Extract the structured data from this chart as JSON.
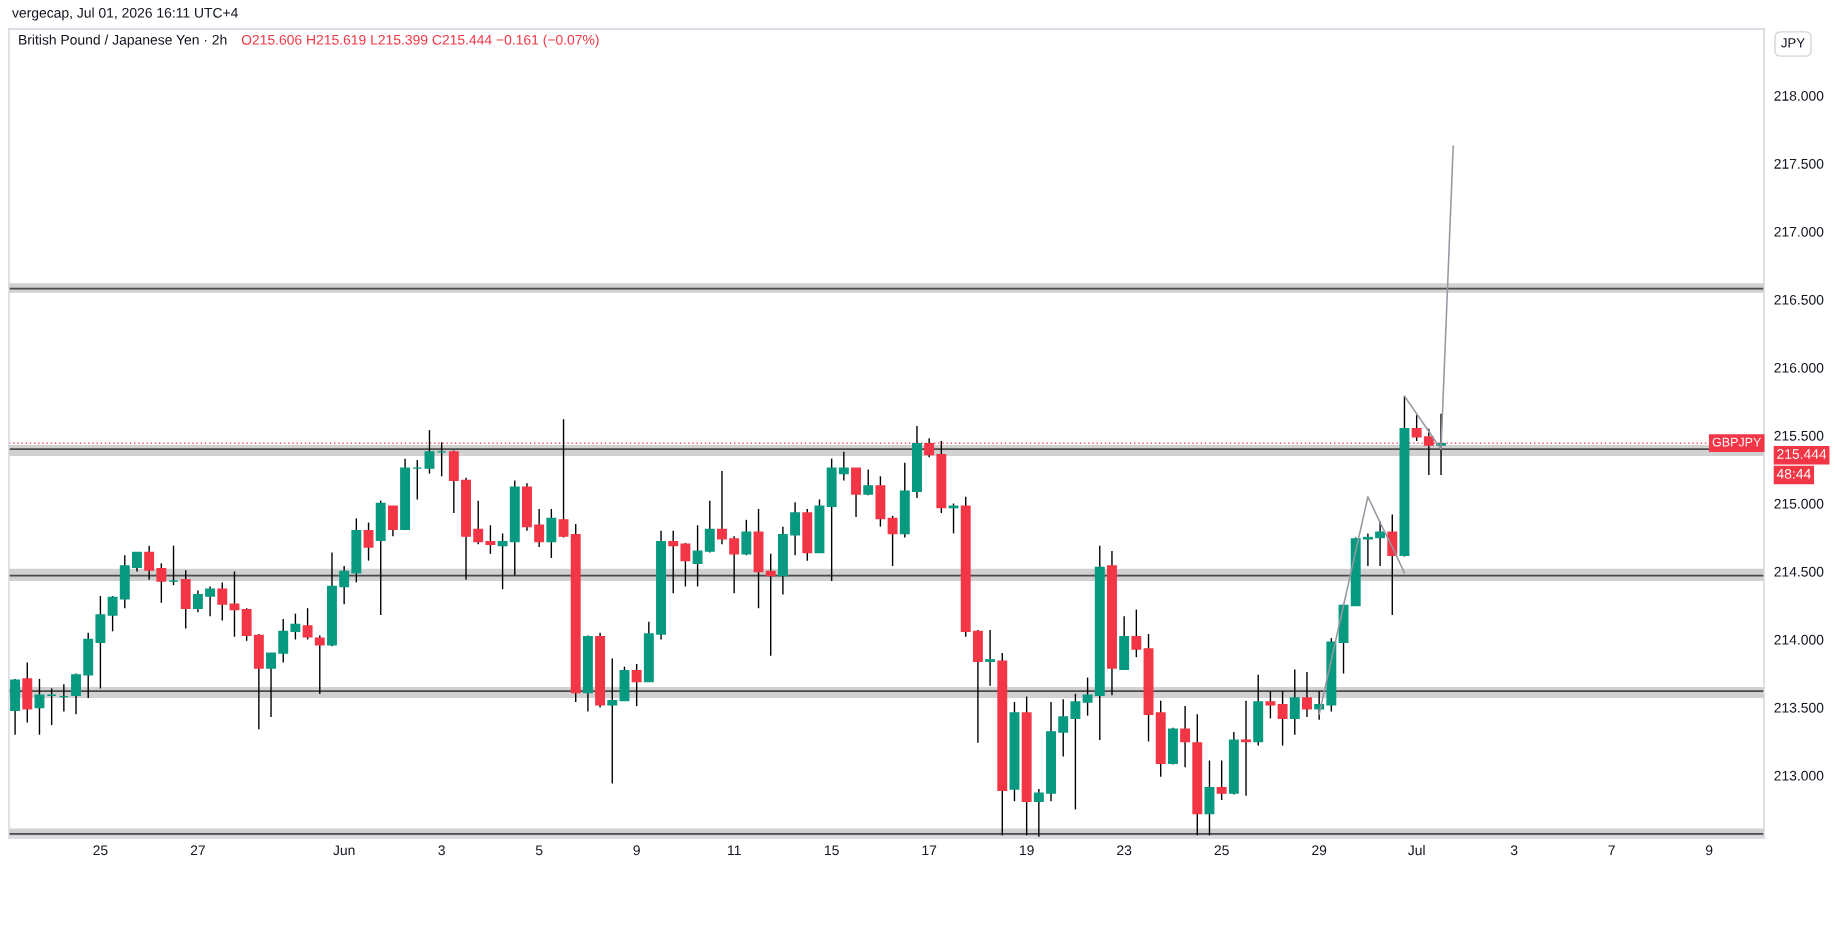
{
  "chart_data": {
    "type": "candlestick",
    "title": "British Pound / Japanese Yen · 2h",
    "subtitle": "O215.606 H215.619 L215.399 C215.444 −0.161 (−0.07%)",
    "annotations": [
      "vergecap, Jul 01, 2026 16:11 UTC+4",
      "JPY",
      "215.444",
      "48:44"
    ],
    "categories": [
      null,
      null,
      null,
      null,
      null,
      null,
      null,
      "25",
      null,
      null,
      null,
      null,
      null,
      null,
      null,
      "27",
      null,
      null,
      null,
      null,
      null,
      null,
      null,
      null,
      null,
      null,
      null,
      "Jun",
      null,
      null,
      null,
      null,
      null,
      null,
      null,
      "3",
      null,
      null,
      null,
      null,
      null,
      null,
      null,
      "5",
      null,
      null,
      null,
      null,
      null,
      null,
      null,
      "9",
      null,
      null,
      null,
      null,
      null,
      null,
      null,
      "11",
      null,
      null,
      null,
      null,
      null,
      null,
      null,
      "15",
      null,
      null,
      null,
      null,
      null,
      null,
      null,
      "17",
      null,
      null,
      null,
      null,
      null,
      null,
      null,
      "19",
      null,
      null,
      null,
      null,
      null,
      null,
      null,
      "23",
      null,
      null,
      null,
      null,
      null,
      null,
      null,
      "25",
      null,
      null,
      null,
      null,
      null,
      null,
      null,
      "29",
      null,
      null,
      null,
      null,
      null,
      null,
      null,
      "Jul",
      null,
      null,
      null,
      null,
      null,
      null,
      null,
      "3",
      null,
      null,
      null,
      null,
      null,
      null,
      null,
      "7",
      null,
      null,
      null,
      null,
      null,
      null,
      null,
      "9",
      null,
      null,
      null,
      null
    ],
    "ohlc": [
      [
        213.48,
        213.71,
        213.3,
        213.7
      ],
      [
        213.71,
        213.83,
        213.39,
        213.49
      ],
      [
        213.5,
        213.71,
        213.3,
        213.59
      ],
      [
        213.59,
        213.64,
        213.37,
        213.59
      ],
      [
        213.58,
        213.67,
        213.47,
        213.58
      ],
      [
        213.59,
        213.75,
        213.45,
        213.74
      ],
      [
        213.74,
        214.05,
        213.57,
        214.0
      ],
      [
        213.98,
        214.32,
        213.64,
        214.18
      ],
      [
        214.18,
        214.32,
        214.06,
        214.31
      ],
      [
        214.3,
        214.62,
        214.23,
        214.54
      ],
      [
        214.53,
        214.64,
        214.5,
        214.64
      ],
      [
        214.64,
        214.69,
        214.44,
        214.51
      ],
      [
        214.52,
        214.56,
        214.27,
        214.43
      ],
      [
        214.43,
        214.69,
        214.4,
        214.43
      ],
      [
        214.44,
        214.51,
        214.08,
        214.23
      ],
      [
        214.23,
        214.36,
        214.2,
        214.33
      ],
      [
        214.32,
        214.39,
        214.17,
        214.37
      ],
      [
        214.37,
        214.42,
        214.14,
        214.26
      ],
      [
        214.26,
        214.5,
        214.02,
        214.22
      ],
      [
        214.22,
        214.23,
        213.99,
        214.03
      ],
      [
        214.03,
        214.04,
        213.34,
        213.79
      ],
      [
        213.79,
        213.9,
        213.43,
        213.9
      ],
      [
        213.9,
        214.15,
        213.83,
        214.06
      ],
      [
        214.06,
        214.19,
        214.0,
        214.11
      ],
      [
        214.1,
        214.23,
        214.0,
        214.02
      ],
      [
        214.01,
        214.03,
        213.6,
        213.96
      ],
      [
        213.96,
        214.64,
        213.95,
        214.39
      ],
      [
        214.39,
        214.54,
        214.26,
        214.5
      ],
      [
        214.49,
        214.89,
        214.42,
        214.8
      ],
      [
        214.8,
        214.86,
        214.58,
        214.68
      ],
      [
        214.73,
        215.02,
        214.18,
        215.0
      ],
      [
        214.98,
        214.98,
        214.76,
        214.81
      ],
      [
        214.81,
        215.33,
        214.81,
        215.26
      ],
      [
        215.26,
        215.32,
        215.03,
        215.26
      ],
      [
        215.26,
        215.54,
        215.22,
        215.38
      ],
      [
        215.38,
        215.45,
        215.2,
        215.38
      ],
      [
        215.38,
        215.39,
        214.93,
        215.17
      ],
      [
        215.17,
        215.19,
        214.44,
        214.76
      ],
      [
        214.81,
        215.02,
        214.7,
        214.72
      ],
      [
        214.72,
        214.84,
        214.63,
        214.7
      ],
      [
        214.69,
        214.78,
        214.37,
        214.72
      ],
      [
        214.72,
        215.17,
        214.47,
        215.12
      ],
      [
        215.12,
        215.15,
        214.8,
        214.83
      ],
      [
        214.84,
        214.96,
        214.68,
        214.72
      ],
      [
        214.72,
        214.96,
        214.6,
        214.89
      ],
      [
        214.88,
        215.62,
        214.75,
        214.76
      ],
      [
        214.77,
        214.85,
        213.54,
        213.61
      ],
      [
        213.61,
        214.03,
        213.47,
        214.02
      ],
      [
        214.02,
        214.05,
        213.5,
        213.52
      ],
      [
        213.52,
        213.86,
        212.94,
        213.55
      ],
      [
        213.55,
        213.8,
        213.55,
        213.77
      ],
      [
        213.77,
        213.82,
        213.51,
        213.69
      ],
      [
        213.69,
        214.13,
        213.69,
        214.04
      ],
      [
        214.04,
        214.8,
        214.0,
        214.72
      ],
      [
        214.72,
        214.8,
        214.34,
        214.69
      ],
      [
        214.7,
        214.71,
        214.39,
        214.58
      ],
      [
        214.56,
        214.84,
        214.39,
        214.65
      ],
      [
        214.65,
        215.02,
        214.64,
        214.81
      ],
      [
        214.81,
        215.24,
        214.7,
        214.74
      ],
      [
        214.74,
        214.76,
        214.34,
        214.63
      ],
      [
        214.63,
        214.88,
        214.62,
        214.79
      ],
      [
        214.79,
        214.96,
        214.23,
        214.5
      ],
      [
        214.5,
        214.63,
        213.88,
        214.47
      ],
      [
        214.47,
        214.83,
        214.33,
        214.77
      ],
      [
        214.77,
        215.01,
        214.62,
        214.93
      ],
      [
        214.93,
        214.96,
        214.58,
        214.64
      ],
      [
        214.64,
        215.03,
        214.64,
        214.98
      ],
      [
        214.98,
        215.33,
        214.43,
        215.26
      ],
      [
        215.22,
        215.38,
        215.17,
        215.26
      ],
      [
        215.26,
        215.26,
        214.9,
        215.07
      ],
      [
        215.07,
        215.25,
        215.06,
        215.13
      ],
      [
        215.13,
        215.2,
        214.83,
        214.89
      ],
      [
        214.89,
        214.91,
        214.54,
        214.78
      ],
      [
        214.78,
        215.3,
        214.75,
        215.09
      ],
      [
        215.09,
        215.57,
        215.04,
        215.44
      ],
      [
        215.44,
        215.48,
        215.34,
        215.36
      ],
      [
        215.36,
        215.46,
        214.93,
        214.97
      ],
      [
        214.97,
        215.0,
        214.78,
        214.98
      ],
      [
        214.98,
        215.05,
        214.02,
        214.06
      ],
      [
        214.06,
        214.07,
        213.24,
        213.84
      ],
      [
        213.84,
        214.07,
        213.66,
        213.85
      ],
      [
        213.84,
        213.9,
        212.56,
        212.89
      ],
      [
        212.9,
        213.54,
        212.81,
        213.46
      ],
      [
        213.46,
        213.58,
        212.56,
        212.81
      ],
      [
        212.81,
        212.9,
        212.55,
        212.87
      ],
      [
        212.87,
        213.54,
        212.81,
        213.32
      ],
      [
        213.32,
        213.56,
        213.14,
        213.43
      ],
      [
        213.42,
        213.6,
        212.75,
        213.54
      ],
      [
        213.54,
        213.72,
        213.44,
        213.59
      ],
      [
        213.59,
        214.69,
        213.26,
        214.53
      ],
      [
        214.54,
        214.65,
        213.59,
        213.79
      ],
      [
        213.78,
        214.17,
        213.78,
        214.02
      ],
      [
        214.02,
        214.22,
        213.87,
        213.93
      ],
      [
        213.93,
        214.04,
        213.25,
        213.45
      ],
      [
        213.46,
        213.55,
        212.99,
        213.09
      ],
      [
        213.09,
        213.35,
        213.08,
        213.34
      ],
      [
        213.34,
        213.51,
        213.06,
        213.25
      ],
      [
        213.24,
        213.45,
        212.56,
        212.72
      ],
      [
        212.72,
        213.11,
        212.56,
        212.91
      ],
      [
        212.91,
        213.11,
        212.82,
        212.87
      ],
      [
        212.87,
        213.32,
        212.86,
        213.26
      ],
      [
        213.26,
        213.55,
        212.85,
        213.25
      ],
      [
        213.25,
        213.74,
        213.22,
        213.54
      ],
      [
        213.54,
        213.62,
        213.42,
        213.52
      ],
      [
        213.52,
        213.62,
        213.22,
        213.42
      ],
      [
        213.42,
        213.78,
        213.3,
        213.57
      ],
      [
        213.57,
        213.76,
        213.43,
        213.49
      ],
      [
        213.49,
        213.62,
        213.41,
        213.52
      ],
      [
        213.52,
        214.01,
        213.47,
        213.98
      ],
      [
        213.98,
        214.26,
        213.75,
        214.25
      ],
      [
        214.25,
        214.75,
        214.25,
        214.74
      ],
      [
        214.74,
        214.78,
        214.54,
        214.75
      ],
      [
        214.75,
        214.87,
        214.54,
        214.79
      ],
      [
        214.79,
        214.92,
        214.18,
        214.62
      ],
      [
        214.62,
        215.79,
        214.61,
        215.55
      ],
      [
        215.55,
        215.65,
        215.46,
        215.49
      ],
      [
        215.49,
        215.55,
        215.21,
        215.43
      ],
      [
        215.43,
        215.66,
        215.21,
        215.44
      ],
      null,
      null,
      null,
      null,
      null,
      null,
      null,
      null,
      null,
      null,
      null,
      null,
      null,
      null,
      null,
      null,
      null,
      null,
      null,
      null,
      null,
      null,
      null,
      null,
      null,
      null
    ],
    "colors": [
      "#089981",
      "#f23645",
      "#089981",
      "#089981",
      "#089981",
      "#089981",
      "#089981",
      "#089981",
      "#089981",
      "#089981",
      "#089981",
      "#f23645",
      "#f23645",
      "#089981",
      "#f23645",
      "#089981",
      "#089981",
      "#f23645",
      "#f23645",
      "#f23645",
      "#f23645",
      "#089981",
      "#089981",
      "#089981",
      "#f23645",
      "#f23645",
      "#089981",
      "#089981",
      "#089981",
      "#f23645",
      "#089981",
      "#f23645",
      "#089981",
      "#089981",
      "#089981",
      "#089981",
      "#f23645",
      "#f23645",
      "#f23645",
      "#f23645",
      "#089981",
      "#089981",
      "#f23645",
      "#f23645",
      "#089981",
      "#f23645",
      "#f23645",
      "#089981",
      "#f23645",
      "#089981",
      "#089981",
      "#f23645",
      "#089981",
      "#089981",
      "#f23645",
      "#f23645",
      "#089981",
      "#089981",
      "#f23645",
      "#f23645",
      "#089981",
      "#f23645",
      "#f23645",
      "#089981",
      "#089981",
      "#f23645",
      "#089981",
      "#089981",
      "#089981",
      "#f23645",
      "#089981",
      "#f23645",
      "#f23645",
      "#089981",
      "#089981",
      "#f23645",
      "#f23645",
      "#089981",
      "#f23645",
      "#f23645",
      "#089981",
      "#f23645",
      "#089981",
      "#f23645",
      "#089981",
      "#089981",
      "#089981",
      "#089981",
      "#089981",
      "#089981",
      "#f23645",
      "#089981",
      "#f23645",
      "#f23645",
      "#f23645",
      "#089981",
      "#f23645",
      "#f23645",
      "#089981",
      "#f23645",
      "#089981",
      "#f23645",
      "#089981",
      "#f23645",
      "#f23645",
      "#089981",
      "#f23645",
      "#089981",
      "#089981",
      "#089981",
      "#089981",
      "#089981",
      "#089981",
      "#f23645",
      "#089981",
      "#f23645",
      "#f23645",
      "#089981",
      null,
      null,
      null,
      null,
      null,
      null,
      null,
      null,
      null,
      null,
      null,
      null,
      null,
      null,
      null,
      null,
      null,
      null,
      null,
      null,
      null,
      null,
      null,
      null,
      null,
      null
    ],
    "series": [
      {
        "type": "line",
        "color": "#9598a1",
        "values": [
          null,
          null,
          null,
          null,
          null,
          null,
          null,
          null,
          null,
          null,
          null,
          null,
          null,
          null,
          null,
          null,
          null,
          null,
          null,
          null,
          null,
          null,
          null,
          null,
          null,
          null,
          null,
          null,
          null,
          null,
          null,
          null,
          null,
          null,
          null,
          null,
          null,
          null,
          null,
          null,
          null,
          null,
          null,
          null,
          null,
          null,
          null,
          null,
          null,
          null,
          null,
          null,
          null,
          null,
          null,
          null,
          null,
          null,
          null,
          null,
          null,
          null,
          null,
          null,
          null,
          null,
          null,
          null,
          null,
          null,
          null,
          null,
          null,
          null,
          null,
          null,
          null,
          null,
          null,
          null,
          null,
          null,
          null,
          null,
          null,
          null,
          null,
          null,
          null,
          null,
          null,
          null,
          null,
          null,
          null,
          null,
          null,
          null,
          null,
          null,
          null,
          null,
          null,
          null,
          null,
          null,
          null,
          213.45,
          213.85,
          214.25,
          214.65,
          215.05,
          214.86,
          214.68,
          214.49,
          null,
          null,
          null,
          null,
          null,
          null,
          null,
          null,
          null,
          null,
          null,
          null,
          null,
          null,
          null,
          null,
          null,
          null,
          null,
          null,
          null,
          null,
          null,
          null,
          null,
          null,
          null,
          null,
          null
        ]
      },
      {
        "type": "line",
        "color": "#9598a1",
        "values": [
          null,
          null,
          null,
          null,
          null,
          null,
          null,
          null,
          null,
          null,
          null,
          null,
          null,
          null,
          null,
          null,
          null,
          null,
          null,
          null,
          null,
          null,
          null,
          null,
          null,
          null,
          null,
          null,
          null,
          null,
          null,
          null,
          null,
          null,
          null,
          null,
          null,
          null,
          null,
          null,
          null,
          null,
          null,
          null,
          null,
          null,
          null,
          null,
          null,
          null,
          null,
          null,
          null,
          null,
          null,
          null,
          null,
          null,
          null,
          null,
          null,
          null,
          null,
          null,
          null,
          null,
          null,
          null,
          null,
          null,
          null,
          null,
          null,
          null,
          null,
          null,
          null,
          null,
          null,
          null,
          null,
          null,
          null,
          null,
          null,
          null,
          null,
          null,
          null,
          null,
          null,
          null,
          null,
          null,
          null,
          null,
          null,
          null,
          null,
          null,
          null,
          null,
          null,
          null,
          null,
          null,
          null,
          null,
          null,
          null,
          null,
          null,
          null,
          null,
          215.79,
          215.66,
          215.53,
          215.4,
          217.63,
          null,
          null,
          null,
          null,
          null,
          null,
          null,
          null,
          null,
          null,
          null,
          null,
          null,
          null,
          null,
          null,
          null,
          null,
          null,
          null,
          null,
          null,
          null,
          null,
          null
        ]
      }
    ],
    "bands": [
      {
        "axis": "y",
        "from": 216.55,
        "to": 216.62,
        "color": "#d1d1d1"
      },
      {
        "axis": "y",
        "from": 215.35,
        "to": 215.43,
        "color": "#d1d1d1"
      },
      {
        "axis": "y",
        "from": 214.43,
        "to": 214.52,
        "color": "#d1d1d1"
      },
      {
        "axis": "y",
        "from": 213.57,
        "to": 213.65,
        "color": "#d1d1d1"
      },
      {
        "axis": "y",
        "from": 212.55,
        "to": 212.61,
        "color": "#d1d1d1"
      }
    ],
    "ref_lines": [
      {
        "axis": "y",
        "value": 216.58,
        "color": "#4a4a4a"
      },
      {
        "axis": "y",
        "value": 215.4,
        "color": "#4a4a4a"
      },
      {
        "axis": "y",
        "value": 214.47,
        "color": "#4a4a4a"
      },
      {
        "axis": "y",
        "value": 213.62,
        "color": "#4a4a4a"
      },
      {
        "axis": "y",
        "value": 212.57,
        "color": "#4a4a4a"
      },
      {
        "axis": "y",
        "value": 215.444,
        "label": "GBPJPY",
        "color": "#f23645",
        "line_style": "dotted"
      }
    ],
    "ylim": [
      212.54,
      218.49
    ],
    "yticks": [
      {
        "value": 213,
        "label": "213.000"
      },
      {
        "value": 213.5,
        "label": "213.500"
      },
      {
        "value": 214,
        "label": "214.000"
      },
      {
        "value": 214.5,
        "label": "214.500"
      },
      {
        "value": 215,
        "label": "215.000"
      },
      {
        "value": 215.5,
        "label": "215.500"
      },
      {
        "value": 216,
        "label": "216.000"
      },
      {
        "value": 216.5,
        "label": "216.500"
      },
      {
        "value": 217,
        "label": "217.000"
      },
      {
        "value": 217.5,
        "label": "217.500"
      },
      {
        "value": 218,
        "label": "218.000"
      }
    ]
  }
}
